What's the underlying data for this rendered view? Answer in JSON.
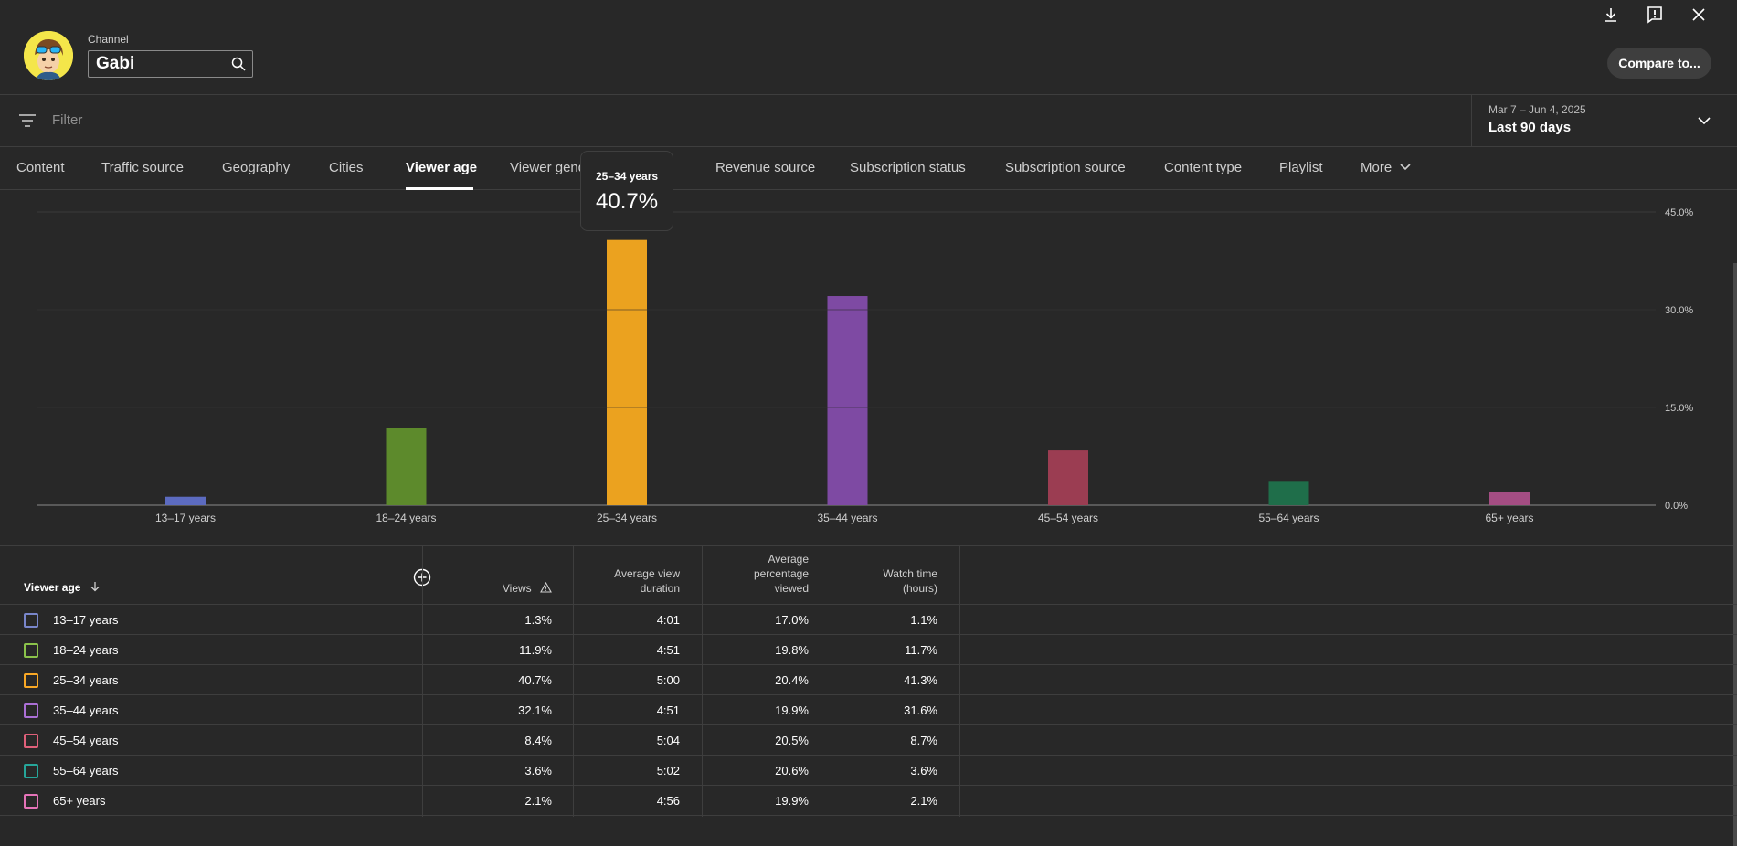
{
  "window_icons": [
    "download-icon",
    "feedback-icon",
    "close-icon"
  ],
  "header": {
    "channel_label": "Channel",
    "channel_name": "Gabi",
    "compare_label": "Compare to..."
  },
  "filter": {
    "placeholder": "Filter"
  },
  "date": {
    "range": "Mar 7 – Jun 4, 2025",
    "label": "Last 90 days"
  },
  "tabs": [
    "Content",
    "Traffic source",
    "Geography",
    "Cities",
    "Viewer age",
    "Viewer gender",
    "Revenue source",
    "Subscription status",
    "Subscription source",
    "Content type",
    "Playlist",
    "More"
  ],
  "active_tab": "Viewer age",
  "tooltip": {
    "label": "25–34 years",
    "value": "40.7%"
  },
  "chart_data": {
    "type": "bar",
    "categories": [
      "13–17 years",
      "18–24 years",
      "25–34 years",
      "35–44 years",
      "45–54 years",
      "55–64 years",
      "65+ years"
    ],
    "values": [
      1.3,
      11.9,
      40.7,
      32.1,
      8.4,
      3.6,
      2.1
    ],
    "colors": [
      "#5c6bc0",
      "#5d8a2c",
      "#eba21f",
      "#7e4aa3",
      "#9b3d52",
      "#1f6e4a",
      "#a44d83"
    ],
    "y_ticks": [
      "45.0%",
      "30.0%",
      "15.0%",
      "0.0%"
    ],
    "ylim": [
      0,
      45
    ],
    "grid": true
  },
  "table": {
    "headers": {
      "viewer_age": "Viewer age",
      "views": "Views",
      "avg_duration": [
        "Average view",
        "duration"
      ],
      "avg_percentage": [
        "Average",
        "percentage",
        "viewed"
      ],
      "watch_time": [
        "Watch time",
        "(hours)"
      ]
    },
    "rows": [
      {
        "label": "13–17 years",
        "views": "1.3%",
        "duration": "4:01",
        "percentage": "17.0%",
        "watch": "1.1%",
        "color": "#7986cb"
      },
      {
        "label": "18–24 years",
        "views": "11.9%",
        "duration": "4:51",
        "percentage": "19.8%",
        "watch": "11.7%",
        "color": "#8bc34a"
      },
      {
        "label": "25–34 years",
        "views": "40.7%",
        "duration": "5:00",
        "percentage": "20.4%",
        "watch": "41.3%",
        "color": "#f9a825"
      },
      {
        "label": "35–44 years",
        "views": "32.1%",
        "duration": "4:51",
        "percentage": "19.9%",
        "watch": "31.6%",
        "color": "#ab6fd6"
      },
      {
        "label": "45–54 years",
        "views": "8.4%",
        "duration": "5:04",
        "percentage": "20.5%",
        "watch": "8.7%",
        "color": "#e0607a"
      },
      {
        "label": "55–64 years",
        "views": "3.6%",
        "duration": "5:02",
        "percentage": "20.6%",
        "watch": "3.6%",
        "color": "#26a69a"
      },
      {
        "label": "65+ years",
        "views": "2.1%",
        "duration": "4:56",
        "percentage": "19.9%",
        "watch": "2.1%",
        "color": "#e573b8"
      }
    ]
  }
}
